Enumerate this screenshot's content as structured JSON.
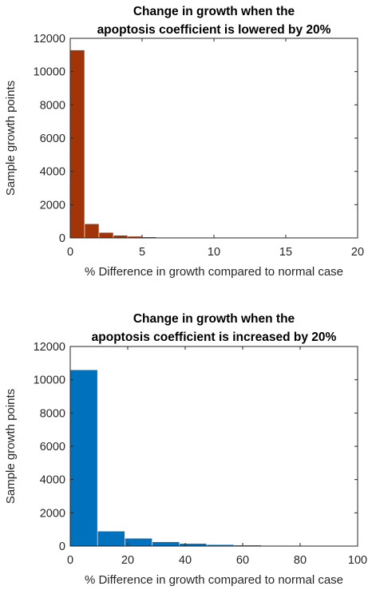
{
  "chart_data": [
    {
      "type": "bar",
      "title_lines": [
        "Change in growth when the",
        "apoptosis coefficient is lowered by 20%"
      ],
      "xlabel": "% Difference in growth compared to normal case",
      "ylabel": "Sample growth points",
      "xlim": [
        0,
        20
      ],
      "ylim": [
        0,
        12000
      ],
      "xticks": [
        0,
        5,
        10,
        15,
        20
      ],
      "yticks": [
        0,
        2000,
        4000,
        6000,
        8000,
        10000,
        12000
      ],
      "bin_width": 1,
      "bin_starts": [
        0,
        1,
        2,
        3,
        4,
        5,
        6,
        7,
        8,
        9,
        10,
        11,
        12,
        13,
        14,
        15,
        16,
        17,
        18,
        19
      ],
      "values": [
        11300,
        850,
        330,
        160,
        100,
        60,
        40,
        25,
        15,
        10,
        8,
        6,
        5,
        4,
        3,
        15,
        3,
        2,
        2,
        2
      ],
      "color": "#a2340a",
      "grid": false
    },
    {
      "type": "bar",
      "title_lines": [
        "Change in growth when the",
        "apoptosis coefficient is increased by 20%"
      ],
      "xlabel": "% Difference in growth compared to normal case",
      "ylabel": "Sample growth points",
      "xlim": [
        0,
        100
      ],
      "ylim": [
        0,
        12000
      ],
      "xticks": [
        0,
        20,
        40,
        60,
        80,
        100
      ],
      "yticks": [
        0,
        2000,
        4000,
        6000,
        8000,
        10000,
        12000
      ],
      "bin_width": 9.5,
      "bin_starts": [
        0,
        9.5,
        19,
        28.5,
        38,
        47.5,
        57,
        66.5,
        76,
        85.5
      ],
      "values": [
        10600,
        900,
        470,
        260,
        160,
        90,
        60,
        40,
        30,
        20
      ],
      "color": "#0072bd",
      "grid": false
    }
  ]
}
